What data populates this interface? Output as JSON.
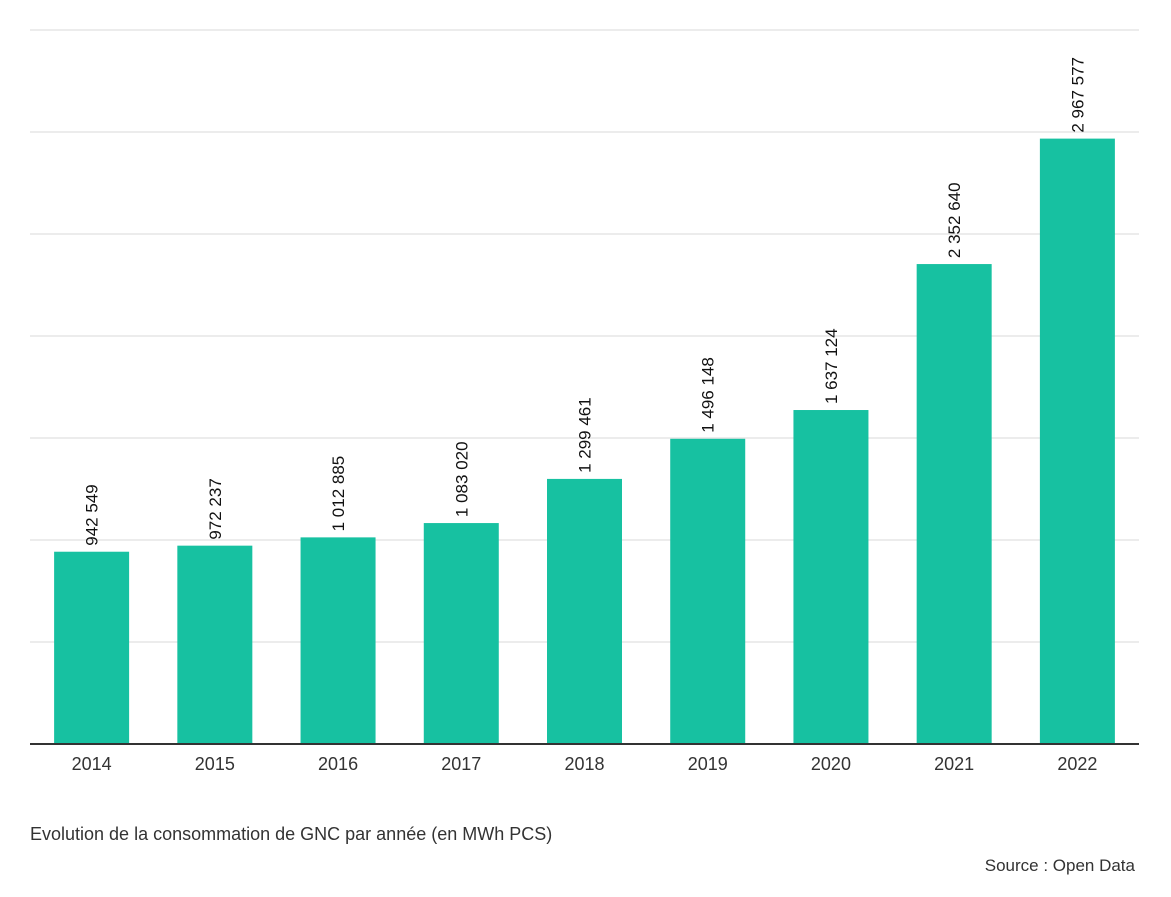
{
  "chart_data": {
    "type": "bar",
    "categories": [
      "2014",
      "2015",
      "2016",
      "2017",
      "2018",
      "2019",
      "2020",
      "2021",
      "2022"
    ],
    "values": [
      942549,
      972237,
      1012885,
      1083020,
      1299461,
      1496148,
      1637124,
      2352640,
      2967577
    ],
    "value_labels": [
      "942 549",
      "972 237",
      "1 012 885",
      "1 083 020",
      "1 299 461",
      "1 496 148",
      "1 637 124",
      "2 352 640",
      "2 967 577"
    ],
    "title": "",
    "xlabel": "",
    "ylabel": "",
    "ylim": [
      0,
      3500000
    ],
    "y_gridlines": [
      500000,
      1000000,
      1500000,
      2000000,
      2500000,
      3000000,
      3500000
    ],
    "y_tick_labels_visible": false,
    "grid": true,
    "legend": "none",
    "bar_color": "#17c1a1",
    "axis_color": "#333333",
    "grid_color": "#d9d9d9"
  },
  "caption": "Evolution de la consommation de GNC par année (en MWh PCS)",
  "source": "Source : Open Data"
}
